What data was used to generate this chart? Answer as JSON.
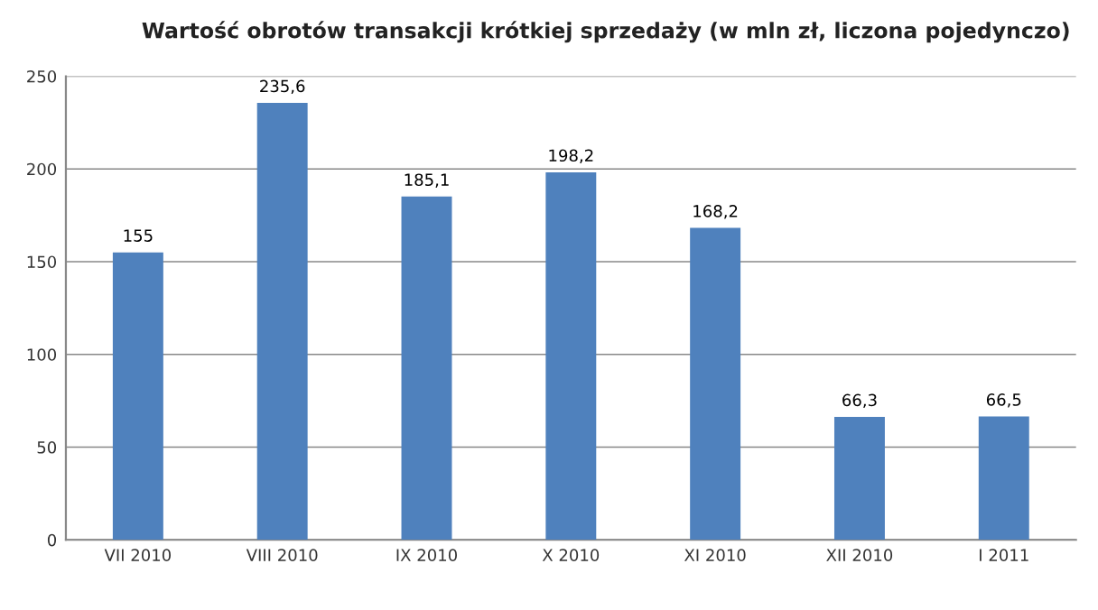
{
  "chart_data": {
    "type": "bar",
    "title": "Wartość obrotów transakcji krótkiej sprzedaży (w mln zł, liczona pojedynczo)",
    "categories": [
      "VII 2010",
      "VIII 2010",
      "IX 2010",
      "X 2010",
      "XI 2010",
      "XII 2010",
      "I 2011"
    ],
    "values": [
      155,
      235.6,
      185.1,
      198.2,
      168.2,
      66.3,
      66.5
    ],
    "value_labels": [
      "155",
      "235,6",
      "185,1",
      "198,2",
      "168,2",
      "66,3",
      "66,5"
    ],
    "color": "#4f81bd",
    "ylim": [
      0,
      250
    ],
    "yticks": [
      0,
      50,
      100,
      150,
      200,
      250
    ],
    "grid": "y",
    "legend": false
  }
}
